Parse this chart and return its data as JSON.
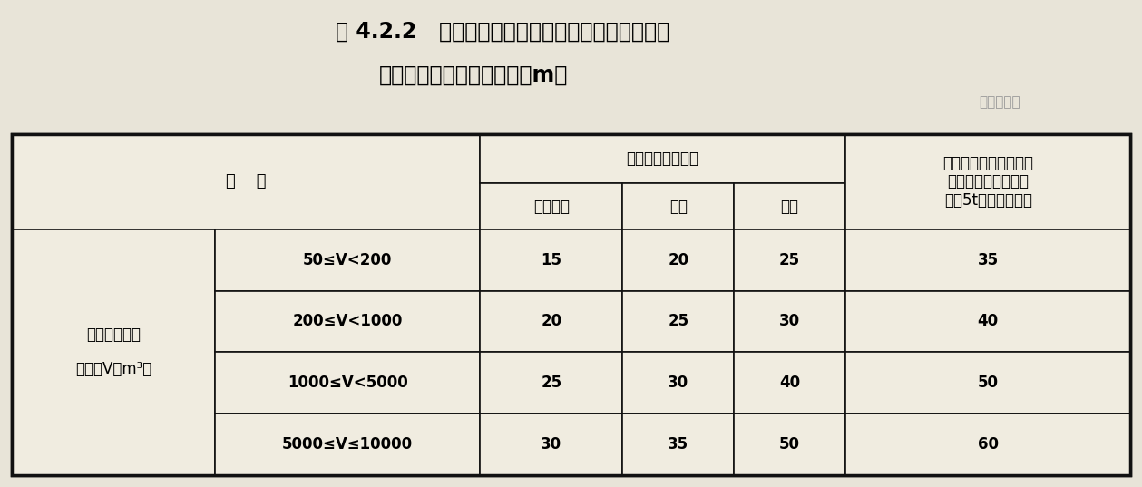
{
  "title_line1": "表 4.2.2   白酒储罐区、食用酒精储罐区与建筑物、",
  "title_line2": "变配电站之间的防火间距（m）",
  "watermark": "消防资源网",
  "bg_color": "#e8e4d8",
  "table_bg": "#f0ece0",
  "header_item": "项    目",
  "header_fire_level": "建筑物的耐火等级",
  "header_last_col": "室外变配电站以及工业\n企业的变压器总油量\n大于5t的室外变电站",
  "sub_col1": "一、二级",
  "sub_col2": "三级",
  "sub_col3": "四级",
  "row_header_main_line1": "一个储罐区的",
  "row_header_main_line2": "总储量V（m³）",
  "rows": [
    [
      "50≤V<200",
      "15",
      "20",
      "25",
      "35"
    ],
    [
      "200≤V<1000",
      "20",
      "25",
      "30",
      "40"
    ],
    [
      "1000≤V<5000",
      "25",
      "30",
      "40",
      "50"
    ],
    [
      "5000≤V≤10000",
      "30",
      "35",
      "50",
      "60"
    ]
  ],
  "title_fontsize": 17,
  "header_fontsize": 12,
  "cell_fontsize": 12,
  "watermark_fontsize": 11
}
